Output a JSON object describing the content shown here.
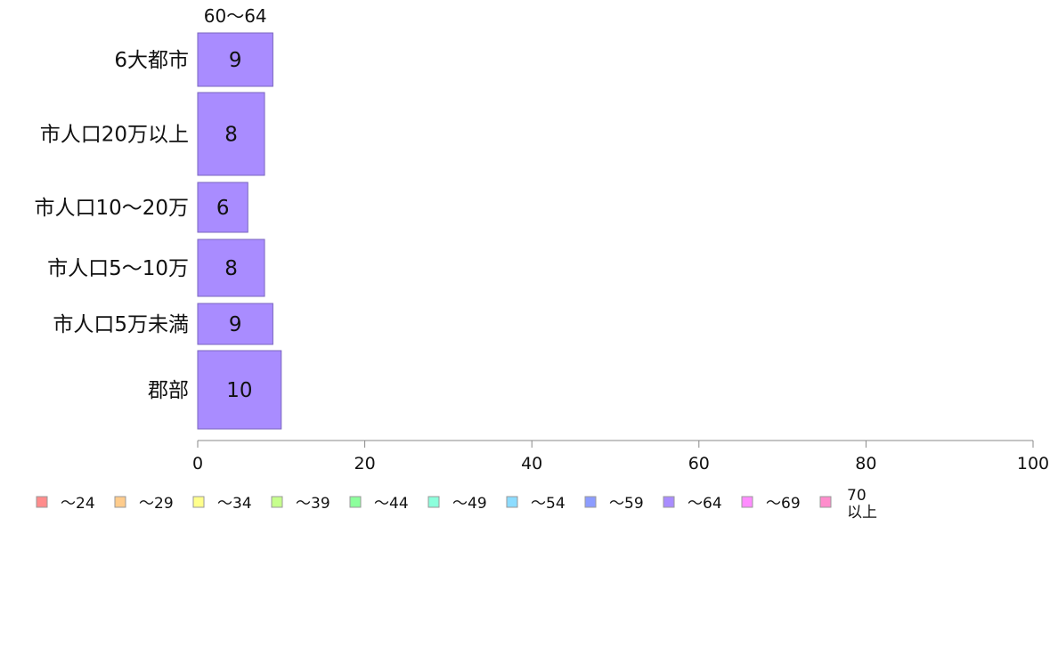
{
  "chart_data": {
    "type": "bar",
    "orientation": "horizontal",
    "stacked": true,
    "categories": [
      "6大都市",
      "市人口20万以上",
      "市人口10〜20万",
      "市人口5〜10万",
      "市人口5万未満",
      "郡部"
    ],
    "series": [
      {
        "name": "〜24",
        "color": "#ff8c8c",
        "values": [
          0,
          0,
          0,
          0,
          0,
          0
        ]
      },
      {
        "name": "〜29",
        "color": "#ffcc8c",
        "values": [
          0,
          0,
          0,
          0,
          0,
          0
        ]
      },
      {
        "name": "〜34",
        "color": "#ffff8c",
        "values": [
          0,
          0,
          0,
          0,
          0,
          0
        ]
      },
      {
        "name": "〜39",
        "color": "#c6ff8c",
        "values": [
          0,
          0,
          0,
          0,
          0,
          0
        ]
      },
      {
        "name": "〜44",
        "color": "#8cff9c",
        "values": [
          0,
          0,
          0,
          0,
          0,
          0
        ]
      },
      {
        "name": "〜49",
        "color": "#8cffdc",
        "values": [
          0,
          0,
          0,
          0,
          0,
          0
        ]
      },
      {
        "name": "〜54",
        "color": "#8cdcff",
        "values": [
          0,
          0,
          0,
          0,
          0,
          0
        ]
      },
      {
        "name": "〜59",
        "color": "#8c9cff",
        "values": [
          0,
          0,
          0,
          0,
          0,
          0
        ]
      },
      {
        "name": "〜64",
        "color": "#a98cff",
        "values": [
          9,
          8,
          6,
          8,
          9,
          10
        ]
      },
      {
        "name": "〜69",
        "color": "#ff8cff",
        "values": [
          0,
          0,
          0,
          0,
          0,
          0
        ]
      },
      {
        "name": "70\n以上",
        "color": "#ff8ccc",
        "values": [
          0,
          0,
          0,
          0,
          0,
          0
        ]
      }
    ],
    "top_series_label": "60〜64",
    "xlim": [
      0,
      100
    ],
    "xticks": [
      0,
      20,
      40,
      60,
      80,
      100
    ],
    "grid": false,
    "legend_position": "bottom"
  }
}
